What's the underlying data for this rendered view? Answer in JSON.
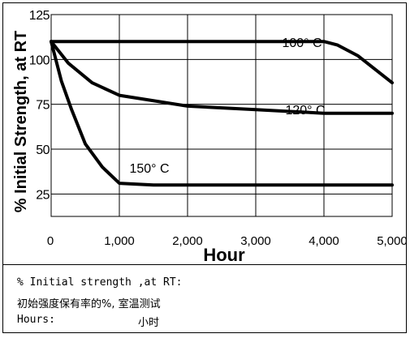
{
  "chart_data": {
    "type": "line",
    "title": "",
    "xlabel": "Hour",
    "ylabel": "% Initial  Strength, at RT",
    "xlim": [
      0,
      5000
    ],
    "ylim": [
      12.5,
      125
    ],
    "x_ticks": [
      "0",
      "1,000",
      "2,000",
      "3,000",
      "4,000",
      "5,000"
    ],
    "y_ticks": [
      "25",
      "50",
      "75",
      "100",
      "125"
    ],
    "grid": true,
    "series": [
      {
        "name": "100° C",
        "x": [
          0,
          1000,
          2000,
          3000,
          4000,
          4200,
          4500,
          5000
        ],
        "y": [
          110,
          110,
          110,
          110,
          110,
          108,
          102,
          87
        ]
      },
      {
        "name": "120° C",
        "x": [
          0,
          250,
          600,
          1000,
          2000,
          3000,
          3500,
          4000,
          5000
        ],
        "y": [
          110,
          98,
          87,
          80,
          74,
          72,
          71,
          70,
          70
        ]
      },
      {
        "name": "150° C",
        "x": [
          0,
          150,
          300,
          500,
          750,
          1000,
          1500,
          2000,
          3000,
          4000,
          5000
        ],
        "y": [
          110,
          88,
          72,
          53,
          40,
          31,
          30,
          30,
          30,
          30,
          30
        ]
      }
    ]
  },
  "caption": {
    "line1": "% Initial strength ,at RT:",
    "line2": "初始强度保有率的%, 室温测试",
    "line3_label": "Hours:",
    "line3_value": "小时"
  }
}
